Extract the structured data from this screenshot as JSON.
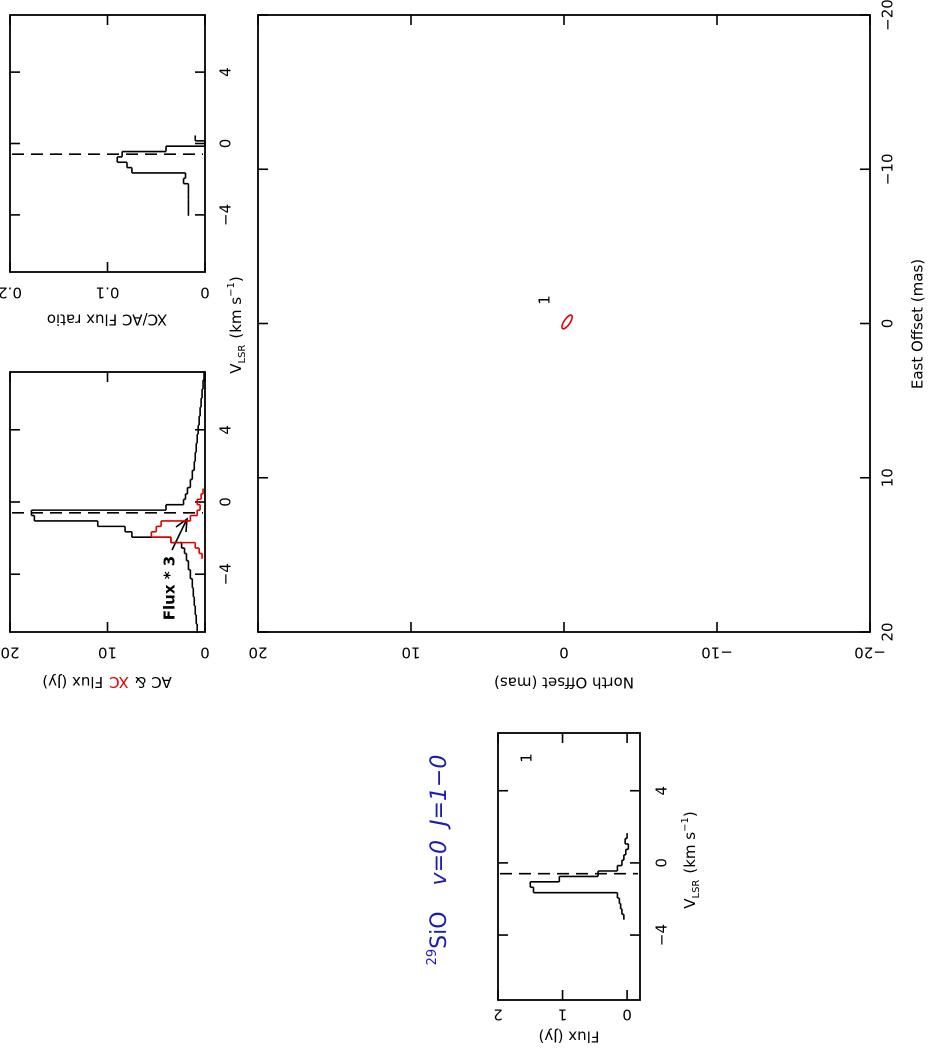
{
  "chart_data": [
    {
      "type": "step",
      "title": [
        "29",
        "SiO",
        "v=0",
        "J=1−0"
      ],
      "title_color": "#1c1cb4",
      "xlabel": [
        "V",
        "LSR",
        "(km s",
        "−1",
        ")"
      ],
      "ylabel": "Flux (Jy)",
      "annotation": "1",
      "xlim": [
        -7.6,
        7.2
      ],
      "ylim": [
        -0.2,
        2
      ],
      "xticks": [
        {
          "value": -4,
          "label": "−4"
        },
        0,
        4
      ],
      "yticks": [
        0,
        1,
        2
      ],
      "vline": -0.6,
      "series": [
        {
          "color": "#000000",
          "x": [
            -3.0,
            -2.7,
            -2.4,
            -2.1,
            -1.8,
            -1.5,
            -1.2,
            -0.9,
            -0.6,
            -0.3,
            0.0,
            0.3,
            0.6,
            0.9,
            1.2,
            1.5
          ],
          "values": [
            0.05,
            0.08,
            0.1,
            0.12,
            0.15,
            1.45,
            1.5,
            1.05,
            0.45,
            0.15,
            0.08,
            0.05,
            0.02,
            -0.02,
            0.03,
            0.0
          ]
        }
      ]
    },
    {
      "type": "step",
      "ylabel": [
        "AC &",
        "XC",
        "Flux (Jy)"
      ],
      "annotation": "Flux * 3",
      "xlim": [
        -7.2,
        7.2
      ],
      "ylim": [
        0,
        20
      ],
      "xticks": [
        {
          "value": -4,
          "label": "−4"
        },
        0,
        4
      ],
      "yticks": [
        0,
        10,
        20
      ],
      "vline": -0.6,
      "series": [
        {
          "color": "#000000",
          "x": [
            -7,
            -6.5,
            -6,
            -5.5,
            -5,
            -4.5,
            -4,
            -3.5,
            -3,
            -2.7,
            -2.4,
            -2.1,
            -1.8,
            -1.5,
            -1.2,
            -0.9,
            -0.6,
            -0.3,
            0,
            0.3,
            0.6,
            1,
            1.5,
            2,
            2.5,
            3,
            3.5,
            4,
            4.5,
            5,
            5.5,
            6,
            6.5,
            7
          ],
          "values": [
            0.8,
            0.9,
            1,
            1.1,
            1.2,
            1.3,
            1.5,
            1.7,
            1.9,
            2.1,
            2.4,
            3.5,
            7.5,
            8.2,
            11,
            17.5,
            17.8,
            4,
            2.2,
            2,
            1.8,
            1.5,
            1.3,
            1.1,
            1,
            0.9,
            0.8,
            0.7,
            0.6,
            0.5,
            0.4,
            0.3,
            0.2,
            0.1
          ]
        },
        {
          "color": "#e00000",
          "x": [
            -3.0,
            -2.7,
            -2.4,
            -2.1,
            -1.8,
            -1.5,
            -1.2,
            -0.9,
            -0.6,
            -0.3,
            0.0,
            0.3,
            0.6
          ],
          "values": [
            0.3,
            0.6,
            1.0,
            3.5,
            5.5,
            5.0,
            4.5,
            1.5,
            0.8,
            0.5,
            0.8,
            0.4,
            0.2
          ]
        }
      ]
    },
    {
      "type": "step",
      "xlabel": [
        "V",
        "LSR",
        "(km s",
        "−1",
        ")"
      ],
      "ylabel": "XC/AC Flux ratio",
      "xlim": [
        -7.2,
        7.2
      ],
      "ylim": [
        0,
        0.2
      ],
      "xticks": [
        {
          "value": -4,
          "label": "−4"
        },
        0,
        4
      ],
      "yticks": [
        0,
        0.1,
        0.2
      ],
      "vline": -0.6,
      "series": [
        {
          "color": "#000000",
          "x": [
            -3.9,
            -3.6,
            -3.3,
            -3.0,
            -2.7,
            -2.4,
            -2.1,
            -1.8,
            -1.5,
            -1.2,
            -0.9,
            -0.6,
            -0.3,
            0.0,
            0.3
          ],
          "values": [
            0.017,
            0.017,
            0.017,
            0.017,
            0.017,
            0.017,
            0.022,
            0.02,
            0.075,
            0.08,
            0.09,
            0.085,
            0.04,
            0.0,
            0.01
          ]
        }
      ]
    },
    {
      "type": "scatter",
      "xlabel": "East Offset (mas)",
      "ylabel": "North Offset (mas)",
      "xlim": [
        20,
        -20
      ],
      "ylim": [
        -20,
        20
      ],
      "xticks": [
        20,
        10,
        0,
        {
          "value": -10,
          "label": "−10"
        },
        {
          "value": -20,
          "label": "−20"
        }
      ],
      "yticks": [
        {
          "value": -20,
          "label": "−20"
        },
        {
          "value": -10,
          "label": "−10"
        },
        0,
        10,
        20
      ],
      "series": [
        {
          "color": "#e00000",
          "x": [
            -0.1
          ],
          "values": [
            -0.2
          ],
          "labels": [
            "1"
          ]
        }
      ]
    }
  ]
}
